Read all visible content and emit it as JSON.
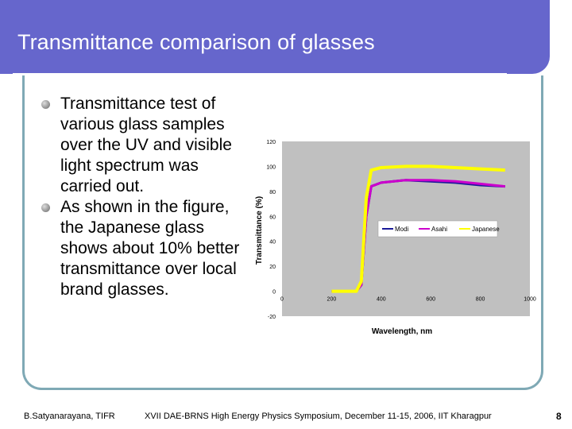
{
  "slide": {
    "title": "Transmittance comparison of glasses",
    "bullets": [
      "Transmittance test of various glass samples over the UV and visible light spectrum was carried out.",
      " As shown in the figure, the Japanese glass shows about 10% better transmittance over local brand glasses."
    ],
    "footer_left": "B.Satyanarayana, TIFR",
    "footer_center": "XVII DAE-BRNS High Energy Physics Symposium, December 11-15, 2006, IIT Kharagpur",
    "page_number": "8",
    "colors": {
      "title_bar": "#6666cc",
      "frame": "#7fa9b5",
      "plot_bg": "#c0c0c0"
    }
  },
  "chart_data": {
    "type": "line",
    "xlabel": "Wavelength, nm",
    "ylabel": "Transmittance (%)",
    "xlim": [
      0,
      1000
    ],
    "ylim": [
      -20,
      120
    ],
    "xticks": [
      0,
      200,
      400,
      600,
      800,
      1000
    ],
    "yticks": [
      -20,
      0,
      20,
      40,
      60,
      80,
      100,
      120
    ],
    "grid": false,
    "legend_position": "middle-right",
    "series": [
      {
        "name": "Modi",
        "color": "#1a1a99",
        "x": [
          200,
          300,
          320,
          340,
          360,
          400,
          500,
          600,
          700,
          800,
          900
        ],
        "y": [
          0,
          0,
          5,
          60,
          84,
          87,
          89,
          88,
          87,
          85,
          84
        ]
      },
      {
        "name": "Asahi",
        "color": "#cc00cc",
        "x": [
          200,
          300,
          320,
          340,
          360,
          400,
          500,
          600,
          700,
          800,
          900
        ],
        "y": [
          0,
          0,
          5,
          60,
          84,
          87,
          89,
          89,
          88,
          86,
          84
        ]
      },
      {
        "name": "Japanese",
        "color": "#ffff00",
        "x": [
          200,
          300,
          320,
          340,
          360,
          400,
          500,
          600,
          700,
          800,
          900
        ],
        "y": [
          0,
          0,
          8,
          75,
          97,
          99,
          100,
          100,
          99,
          98,
          97
        ]
      }
    ]
  }
}
